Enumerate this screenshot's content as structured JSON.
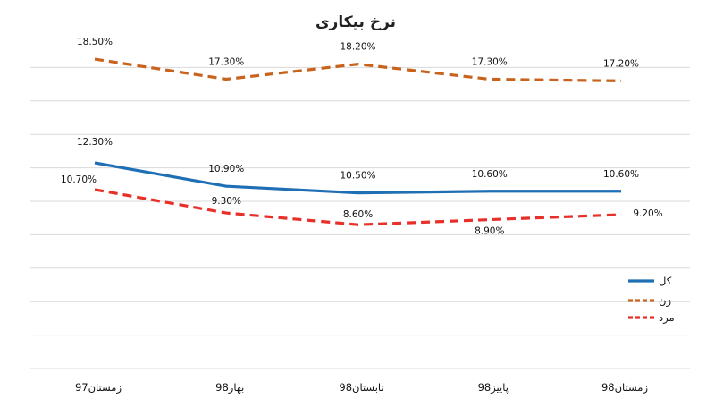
{
  "chart_data": {
    "type": "line",
    "title": "نرخ بیکاری",
    "categories": [
      "زمستان97",
      "بهار98",
      "تابستان98",
      "پاییز98",
      "زمستان98"
    ],
    "ylim": [
      0,
      20
    ],
    "grid": true,
    "legend_position": "right",
    "series": [
      {
        "name": "کل",
        "values": [
          12.3,
          10.9,
          10.5,
          10.6,
          10.6
        ],
        "labels": [
          "12.30%",
          "10.90%",
          "10.50%",
          "10.60%",
          "10.60%"
        ],
        "color": "#1f6fb5",
        "dash": "solid"
      },
      {
        "name": "زن",
        "values": [
          18.5,
          17.3,
          18.2,
          17.3,
          17.2
        ],
        "labels": [
          "18.50%",
          "17.30%",
          "18.20%",
          "17.30%",
          "17.20%"
        ],
        "color": "#c8631d",
        "dash": "dashed"
      },
      {
        "name": "مرد",
        "values": [
          10.7,
          9.3,
          8.6,
          8.9,
          9.2
        ],
        "labels": [
          "10.70%",
          "9.30%",
          "8.60%",
          "8.90%",
          "9.20%"
        ],
        "color": "#e8302a",
        "dash": "dashed"
      }
    ]
  }
}
